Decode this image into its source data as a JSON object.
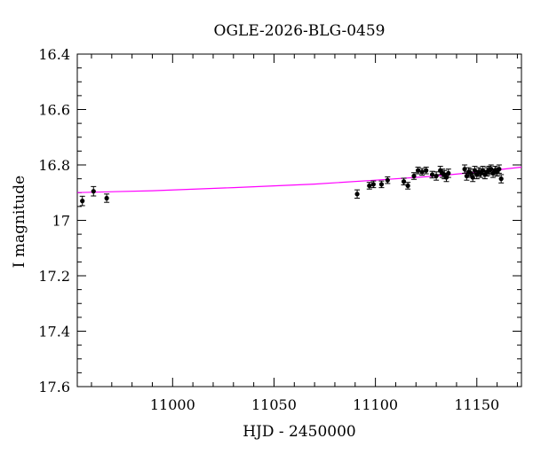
{
  "chart_data": {
    "type": "scatter",
    "title": "OGLE-2026-BLG-0459",
    "xlabel": "HJD - 2450000",
    "ylabel": "I magnitude",
    "xlim": [
      10953,
      11172
    ],
    "ylim": [
      17.6,
      16.4
    ],
    "y_inverted": true,
    "x_ticks": [
      11000,
      11050,
      11100,
      11150
    ],
    "y_ticks": [
      16.4,
      16.6,
      16.8,
      17,
      17.2,
      17.4,
      17.6
    ],
    "y_tick_labels": [
      "16.4",
      "16.6",
      "16.8",
      "17",
      "17.2",
      "17.4",
      "17.6"
    ],
    "grid": false,
    "colors": {
      "points": "#000000",
      "model": "#ff00ff"
    },
    "series": [
      {
        "kind": "points_with_errorbars",
        "x": [
          10955.5,
          10961,
          10967.5,
          11091,
          11097,
          11099,
          11103,
          11106,
          11114,
          11116,
          11119,
          11121,
          11123,
          11125,
          11128,
          11130,
          11132,
          11133,
          11134,
          11135,
          11136,
          11144,
          11145,
          11146,
          11147,
          11148,
          11149,
          11150,
          11151,
          11152,
          11153,
          11154,
          11155,
          11156,
          11157,
          11158,
          11159,
          11160,
          11161,
          11162
        ],
        "y": [
          16.93,
          16.895,
          16.92,
          16.905,
          16.875,
          16.87,
          16.87,
          16.855,
          16.86,
          16.875,
          16.84,
          16.82,
          16.825,
          16.82,
          16.835,
          16.84,
          16.82,
          16.83,
          16.835,
          16.845,
          16.83,
          16.815,
          16.84,
          16.825,
          16.83,
          16.845,
          16.82,
          16.835,
          16.825,
          16.83,
          16.82,
          16.835,
          16.825,
          16.82,
          16.815,
          16.83,
          16.82,
          16.825,
          16.815,
          16.85
        ],
        "yerr": [
          0.017,
          0.017,
          0.015,
          0.015,
          0.012,
          0.012,
          0.012,
          0.012,
          0.012,
          0.012,
          0.012,
          0.012,
          0.012,
          0.012,
          0.012,
          0.015,
          0.015,
          0.015,
          0.015,
          0.015,
          0.015,
          0.015,
          0.015,
          0.015,
          0.015,
          0.015,
          0.015,
          0.015,
          0.015,
          0.015,
          0.015,
          0.015,
          0.015,
          0.015,
          0.015,
          0.015,
          0.015,
          0.015,
          0.015,
          0.015
        ]
      },
      {
        "kind": "model_curve",
        "x": [
          10953,
          10990,
          11030,
          11070,
          11100,
          11130,
          11150,
          11172
        ],
        "y": [
          16.9,
          16.893,
          16.882,
          16.869,
          16.855,
          16.84,
          16.826,
          16.808
        ]
      }
    ]
  }
}
